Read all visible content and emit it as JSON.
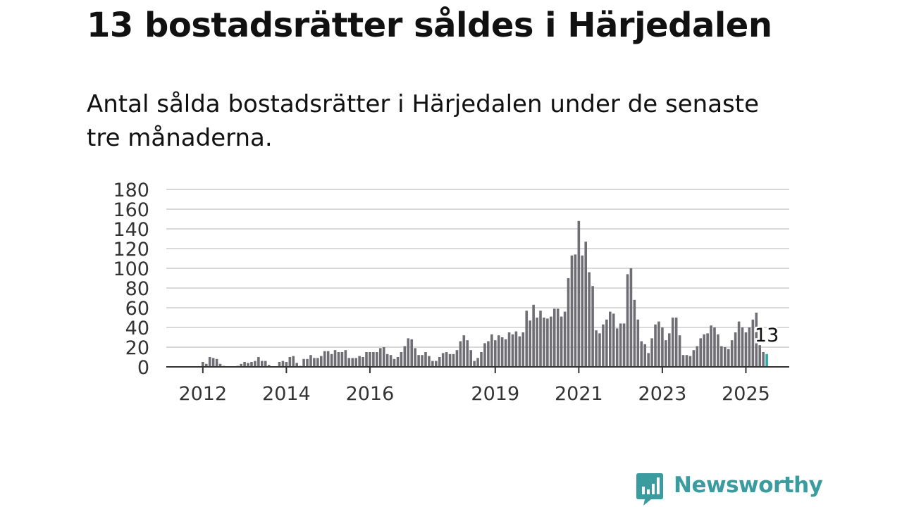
{
  "title": "13 bostadsrätter såldes i Härjedalen",
  "subtitle": "Antal sålda bostadsrätter i Härjedalen under de senaste tre månaderna.",
  "brand": {
    "name": "Newsworthy",
    "color": "#3a9c9f",
    "icon": "newsworthy-logo-icon"
  },
  "chart_data": {
    "type": "bar",
    "x_tick_labels": [
      "2012",
      "2014",
      "2016",
      "2019",
      "2021",
      "2023",
      "2025"
    ],
    "y_tick_labels": [
      "0",
      "20",
      "40",
      "60",
      "80",
      "100",
      "120",
      "140",
      "160",
      "180"
    ],
    "ylim": [
      0,
      180
    ],
    "grid": true,
    "bar_color": "#6f6e75",
    "highlight_color": "#2aa9a9",
    "start_month": "2011-10",
    "highlight_label": "13",
    "values": [
      0,
      0,
      0,
      5,
      3,
      10,
      9,
      8,
      3,
      1,
      0,
      0,
      0,
      1,
      3,
      5,
      4,
      5,
      6,
      10,
      6,
      6,
      2,
      0,
      0,
      5,
      6,
      5,
      10,
      11,
      4,
      1,
      8,
      8,
      12,
      9,
      9,
      11,
      16,
      16,
      13,
      17,
      15,
      15,
      17,
      9,
      9,
      9,
      11,
      10,
      15,
      15,
      15,
      15,
      19,
      20,
      13,
      12,
      8,
      10,
      15,
      21,
      29,
      28,
      19,
      12,
      12,
      15,
      11,
      6,
      6,
      10,
      14,
      15,
      13,
      13,
      17,
      26,
      32,
      27,
      17,
      6,
      9,
      15,
      24,
      26,
      33,
      27,
      32,
      30,
      28,
      35,
      33,
      36,
      31,
      35,
      57,
      47,
      63,
      50,
      57,
      50,
      49,
      51,
      59,
      59,
      51,
      56,
      90,
      113,
      114,
      148,
      113,
      127,
      96,
      82,
      37,
      34,
      43,
      48,
      56,
      54,
      39,
      44,
      44,
      94,
      100,
      68,
      48,
      26,
      23,
      14,
      29,
      43,
      46,
      40,
      27,
      34,
      50,
      50,
      32,
      12,
      12,
      11,
      17,
      21,
      29,
      33,
      34,
      42,
      40,
      33,
      21,
      20,
      18,
      27,
      35,
      46,
      40,
      35,
      40,
      48,
      55,
      22,
      15,
      13
    ]
  }
}
